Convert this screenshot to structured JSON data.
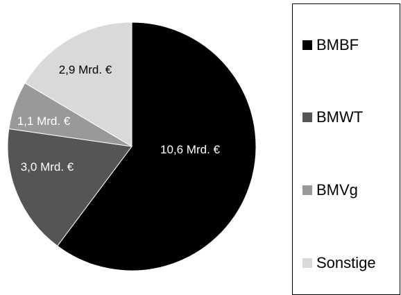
{
  "chart_data": {
    "type": "pie",
    "slices": [
      {
        "name": "BMBF",
        "value": 10.6,
        "label": "10,6 Mrd. €",
        "color": "#000000",
        "label_color": "#ffffff"
      },
      {
        "name": "BMWT",
        "value": 3.0,
        "label": "3,0 Mrd. €",
        "color": "#555555",
        "label_color": "#ffffff"
      },
      {
        "name": "BMVg",
        "value": 1.1,
        "label": "1,1 Mrd. €",
        "color": "#999999",
        "label_color": "#ffffff"
      },
      {
        "name": "Sonstige",
        "value": 2.9,
        "label": "2,9 Mrd. €",
        "color": "#d9d9d9",
        "label_color": "#000000"
      }
    ],
    "start_angle": "12 o'clock",
    "direction": "clockwise",
    "legend_position": "right"
  },
  "legend": {
    "items": [
      {
        "label": "BMBF",
        "color": "#000000"
      },
      {
        "label": "BMWT",
        "color": "#555555"
      },
      {
        "label": "BMVg",
        "color": "#999999"
      },
      {
        "label": "Sonstige",
        "color": "#d9d9d9"
      }
    ]
  }
}
